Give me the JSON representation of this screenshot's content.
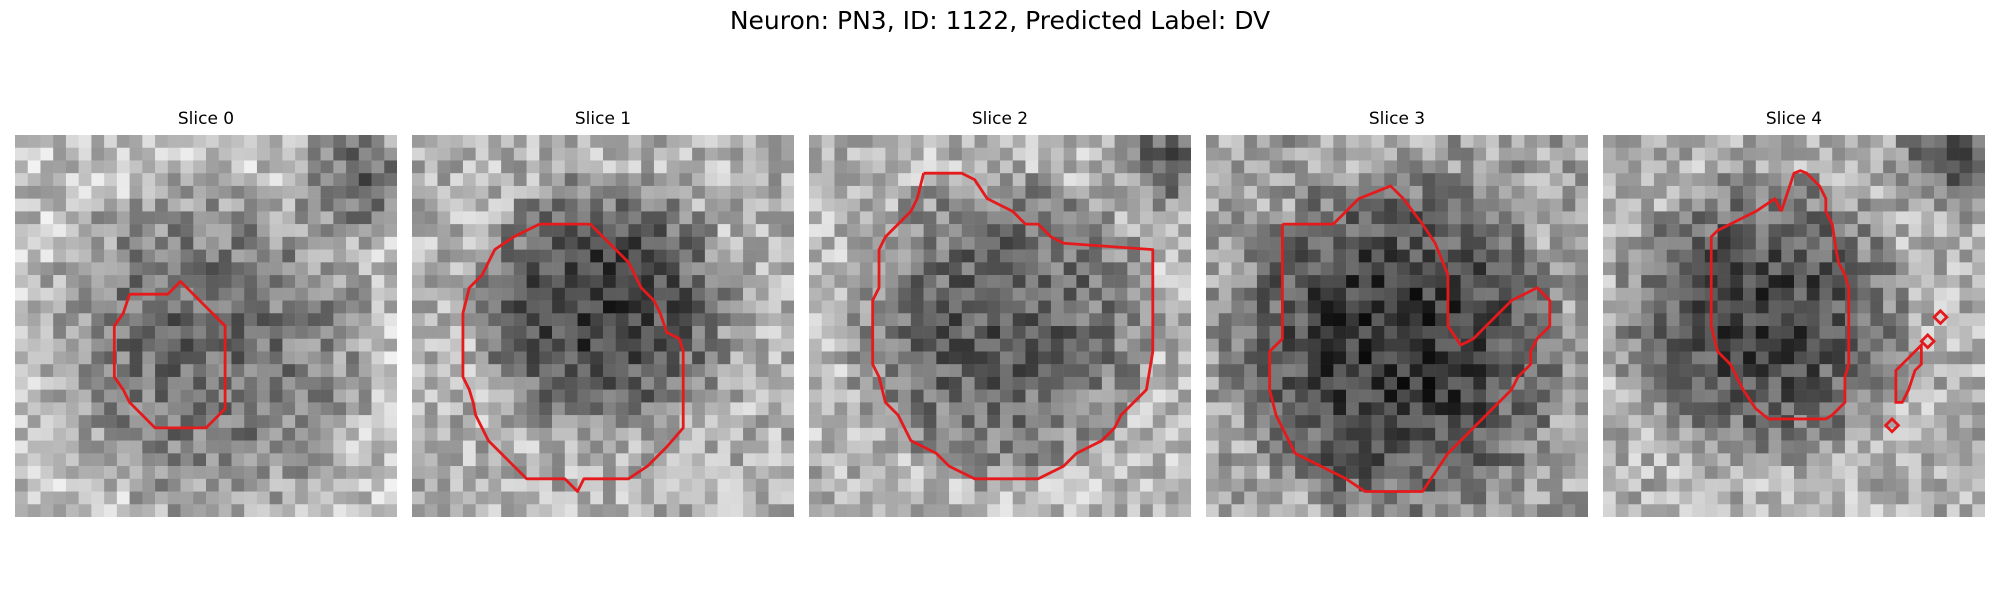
{
  "figure": {
    "title": "Neuron: PN3, ID: 1122, Predicted Label: DV"
  },
  "panels": [
    {
      "title": "Slice 0",
      "seed": 11,
      "center": [
        0.5,
        0.55
      ],
      "radius": 0.45,
      "contrast": 0.3,
      "base": 0.68,
      "dark_corner": [
        0.9,
        0.12
      ]
    },
    {
      "title": "Slice 1",
      "seed": 23,
      "center": [
        0.5,
        0.45
      ],
      "radius": 0.36,
      "contrast": 0.42,
      "base": 0.62,
      "dark_corner": null
    },
    {
      "title": "Slice 2",
      "seed": 37,
      "center": [
        0.5,
        0.5
      ],
      "radius": 0.42,
      "contrast": 0.32,
      "base": 0.64,
      "dark_corner": [
        0.95,
        0.05
      ]
    },
    {
      "title": "Slice 3",
      "seed": 41,
      "center": [
        0.5,
        0.55
      ],
      "radius": 0.46,
      "contrast": 0.4,
      "base": 0.55,
      "dark_corner": null
    },
    {
      "title": "Slice 4",
      "seed": 53,
      "center": [
        0.42,
        0.48
      ],
      "radius": 0.4,
      "contrast": 0.4,
      "base": 0.62,
      "dark_corner": [
        0.92,
        0.05
      ]
    }
  ],
  "colors": {
    "contour": "#e41a1c",
    "background": "#ffffff"
  }
}
